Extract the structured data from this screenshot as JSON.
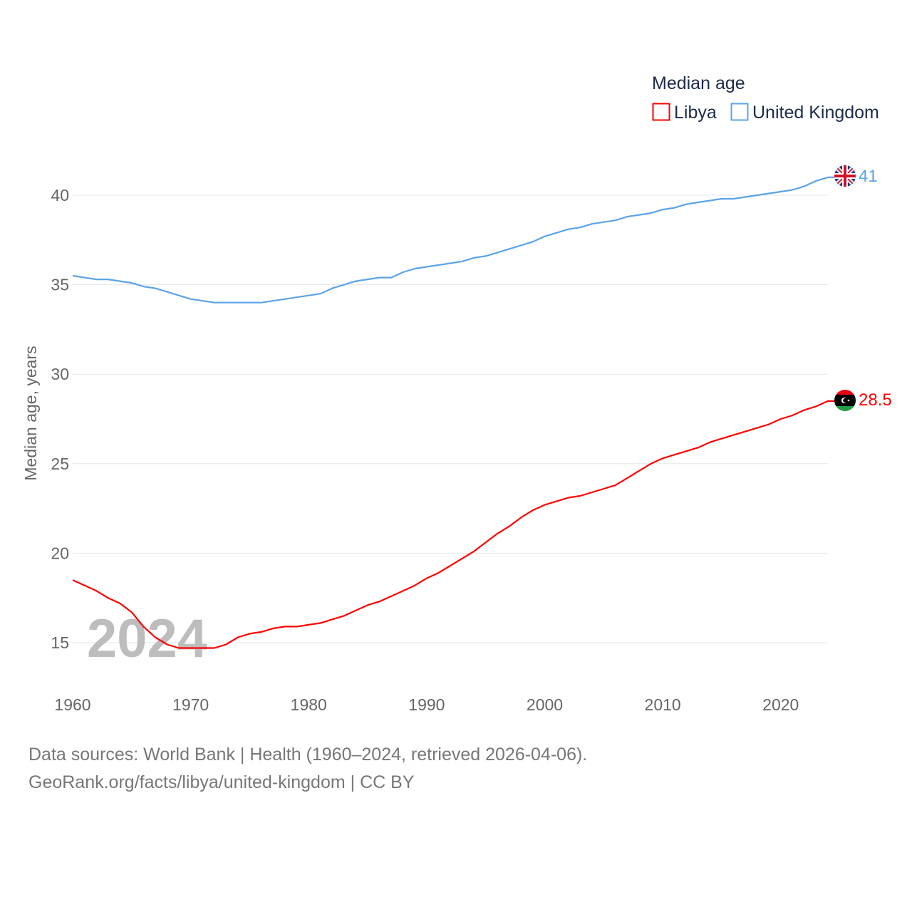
{
  "chart_data": {
    "type": "line",
    "title": "Median age",
    "xlabel": "",
    "ylabel": "Median age, years",
    "xlim": [
      1960,
      2024
    ],
    "ylim": [
      12.5,
      42
    ],
    "x_ticks": [
      1960,
      1970,
      1980,
      1990,
      2000,
      2010,
      2020
    ],
    "y_ticks": [
      15,
      20,
      25,
      30,
      35,
      40
    ],
    "grid": true,
    "legend_position": "top-right",
    "watermark_year": "2024",
    "x": [
      1960,
      1961,
      1962,
      1963,
      1964,
      1965,
      1966,
      1967,
      1968,
      1969,
      1970,
      1971,
      1972,
      1973,
      1974,
      1975,
      1976,
      1977,
      1978,
      1979,
      1980,
      1981,
      1982,
      1983,
      1984,
      1985,
      1986,
      1987,
      1988,
      1989,
      1990,
      1991,
      1992,
      1993,
      1994,
      1995,
      1996,
      1997,
      1998,
      1999,
      2000,
      2001,
      2002,
      2003,
      2004,
      2005,
      2006,
      2007,
      2008,
      2009,
      2010,
      2011,
      2012,
      2013,
      2014,
      2015,
      2016,
      2017,
      2018,
      2019,
      2020,
      2021,
      2022,
      2023,
      2024
    ],
    "series": [
      {
        "name": "Libya",
        "color": "#ff0000",
        "end_label": "28.5",
        "values": [
          18.5,
          18.2,
          17.9,
          17.5,
          17.2,
          16.7,
          15.9,
          15.3,
          14.9,
          14.7,
          14.7,
          14.7,
          14.7,
          14.9,
          15.3,
          15.5,
          15.6,
          15.8,
          15.9,
          15.9,
          16.0,
          16.1,
          16.3,
          16.5,
          16.8,
          17.1,
          17.3,
          17.6,
          17.9,
          18.2,
          18.6,
          18.9,
          19.3,
          19.7,
          20.1,
          20.6,
          21.1,
          21.5,
          22.0,
          22.4,
          22.7,
          22.9,
          23.1,
          23.2,
          23.4,
          23.6,
          23.8,
          24.2,
          24.6,
          25.0,
          25.3,
          25.5,
          25.7,
          25.9,
          26.2,
          26.4,
          26.6,
          26.8,
          27.0,
          27.2,
          27.5,
          27.7,
          28.0,
          28.2,
          28.5
        ]
      },
      {
        "name": "United Kingdom",
        "color": "#5ba4e8",
        "end_label": "41",
        "values": [
          35.5,
          35.4,
          35.3,
          35.3,
          35.2,
          35.1,
          34.9,
          34.8,
          34.6,
          34.4,
          34.2,
          34.1,
          34.0,
          34.0,
          34.0,
          34.0,
          34.0,
          34.1,
          34.2,
          34.3,
          34.4,
          34.5,
          34.8,
          35.0,
          35.2,
          35.3,
          35.4,
          35.4,
          35.7,
          35.9,
          36.0,
          36.1,
          36.2,
          36.3,
          36.5,
          36.6,
          36.8,
          37.0,
          37.2,
          37.4,
          37.7,
          37.9,
          38.1,
          38.2,
          38.4,
          38.5,
          38.6,
          38.8,
          38.9,
          39.0,
          39.2,
          39.3,
          39.5,
          39.6,
          39.7,
          39.8,
          39.8,
          39.9,
          40.0,
          40.1,
          40.2,
          40.3,
          40.5,
          40.8,
          41.0
        ]
      }
    ]
  },
  "footer": {
    "line1": "Data sources: World Bank | Health (1960–2024, retrieved 2026-04-06).",
    "line2": "GeoRank.org/facts/libya/united-kingdom | CC BY"
  }
}
